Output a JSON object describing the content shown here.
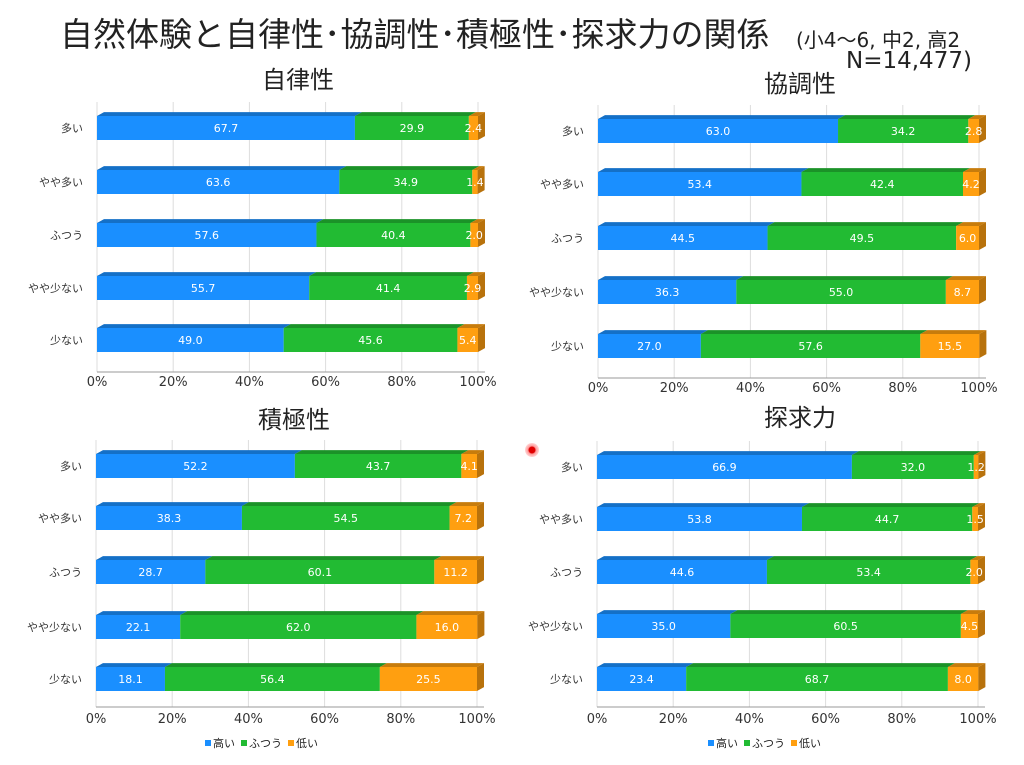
{
  "header": {
    "title": "自然体験と自律性･協調性･積極性･探求力の関係",
    "sub": "(小4～6, 中2, 高2",
    "n": "N=14,477)"
  },
  "colors": {
    "high": "#1a8fff",
    "mid": "#22bb33",
    "low": "#ff9f10"
  },
  "legend": [
    "高い",
    "ふつう",
    "低い"
  ],
  "chart_data": [
    {
      "type": "bar",
      "title": "自律性",
      "categories": [
        "多い",
        "やや多い",
        "ふつう",
        "やや少ない",
        "少ない"
      ],
      "series": [
        {
          "name": "高い",
          "values": [
            67.7,
            63.6,
            57.6,
            55.7,
            49.0
          ]
        },
        {
          "name": "ふつう",
          "values": [
            29.9,
            34.9,
            40.4,
            41.4,
            45.6
          ]
        },
        {
          "name": "低い",
          "values": [
            2.4,
            1.4,
            2.0,
            2.9,
            5.4
          ]
        }
      ],
      "xticks": [
        "0%",
        "20%",
        "40%",
        "60%",
        "80%",
        "100%"
      ],
      "xlim": [
        0,
        100
      ]
    },
    {
      "type": "bar",
      "title": "協調性",
      "categories": [
        "多い",
        "やや多い",
        "ふつう",
        "やや少ない",
        "少ない"
      ],
      "series": [
        {
          "name": "高い",
          "values": [
            63.0,
            53.4,
            44.5,
            36.3,
            27.0
          ]
        },
        {
          "name": "ふつう",
          "values": [
            34.2,
            42.4,
            49.5,
            55.0,
            57.6
          ]
        },
        {
          "name": "低い",
          "values": [
            2.8,
            4.2,
            6.0,
            8.7,
            15.5
          ]
        }
      ],
      "xticks": [
        "0%",
        "20%",
        "40%",
        "60%",
        "80%",
        "100%"
      ],
      "xlim": [
        0,
        100
      ]
    },
    {
      "type": "bar",
      "title": "積極性",
      "categories": [
        "多い",
        "やや多い",
        "ふつう",
        "やや少ない",
        "少ない"
      ],
      "series": [
        {
          "name": "高い",
          "values": [
            52.2,
            38.3,
            28.7,
            22.1,
            18.1
          ]
        },
        {
          "name": "ふつう",
          "values": [
            43.7,
            54.5,
            60.1,
            62.0,
            56.4
          ]
        },
        {
          "name": "低い",
          "values": [
            4.1,
            7.2,
            11.2,
            16.0,
            25.5
          ]
        }
      ],
      "xticks": [
        "0%",
        "20%",
        "40%",
        "60%",
        "80%",
        "100%"
      ],
      "xlim": [
        0,
        100
      ]
    },
    {
      "type": "bar",
      "title": "探求力",
      "categories": [
        "多い",
        "やや多い",
        "ふつう",
        "やや少ない",
        "少ない"
      ],
      "series": [
        {
          "name": "高い",
          "values": [
            66.9,
            53.8,
            44.6,
            35.0,
            23.4
          ]
        },
        {
          "name": "ふつう",
          "values": [
            32.0,
            44.7,
            53.4,
            60.5,
            68.7
          ]
        },
        {
          "name": "低い",
          "values": [
            1.2,
            1.5,
            2.0,
            4.5,
            8.0
          ]
        }
      ],
      "xticks": [
        "0%",
        "20%",
        "40%",
        "60%",
        "80%",
        "100%"
      ],
      "xlim": [
        0,
        100
      ]
    }
  ]
}
